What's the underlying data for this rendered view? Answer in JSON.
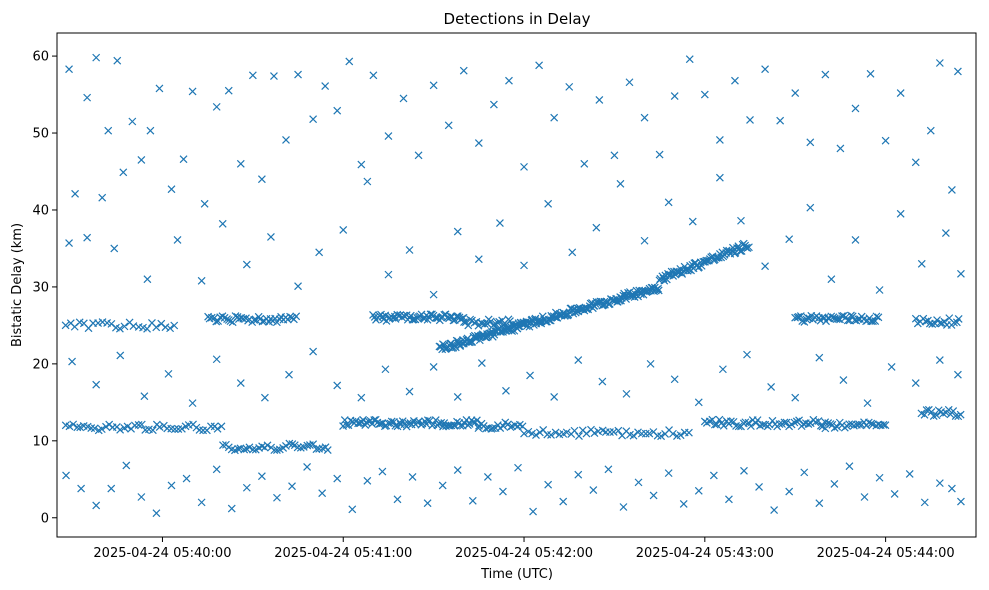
{
  "chart_data": {
    "type": "scatter",
    "title": "Detections in Delay",
    "xlabel": "Time (UTC)",
    "ylabel": "Bistatic Delay (km)",
    "marker": "x",
    "color": "#1f77b4",
    "xlim": [
      "2025-04-24T05:39:25",
      "2025-04-24T05:44:30"
    ],
    "ylim": [
      -2.5,
      63
    ],
    "x_ticks": [
      "2025-04-24 05:40:00",
      "2025-04-24 05:41:00",
      "2025-04-24 05:42:00",
      "2025-04-24 05:43:00",
      "2025-04-24 05:44:00"
    ],
    "y_ticks": [
      0,
      10,
      20,
      30,
      40,
      50,
      60
    ],
    "grid": false,
    "tracks": [
      {
        "x_start": "2025-04-24T05:39:28",
        "x_end": "2025-04-24T05:40:20",
        "y": 11.8,
        "step_s": 1.2
      },
      {
        "x_start": "2025-04-24T05:40:20",
        "x_end": "2025-04-24T05:40:55",
        "y": 9.2,
        "step_s": 1.0
      },
      {
        "x_start": "2025-04-24T05:41:00",
        "x_end": "2025-04-24T05:41:45",
        "y": 12.3,
        "step_s": 0.6
      },
      {
        "x_start": "2025-04-24T05:41:45",
        "x_end": "2025-04-24T05:42:00",
        "y": 12.0,
        "step_s": 0.8
      },
      {
        "x_start": "2025-04-24T05:42:00",
        "x_end": "2025-04-24T05:42:55",
        "y": 11.0,
        "step_s": 1.3
      },
      {
        "x_start": "2025-04-24T05:43:00",
        "x_end": "2025-04-24T05:43:40",
        "y": 12.3,
        "step_s": 0.8
      },
      {
        "x_start": "2025-04-24T05:43:40",
        "x_end": "2025-04-24T05:44:00",
        "y": 12.0,
        "step_s": 0.8
      },
      {
        "x_start": "2025-04-24T05:44:12",
        "x_end": "2025-04-24T05:44:25",
        "y": 13.6,
        "step_s": 0.8
      },
      {
        "x_start": "2025-04-24T05:39:28",
        "x_end": "2025-04-24T05:40:05",
        "y": 25.0,
        "step_s": 1.5
      },
      {
        "x_start": "2025-04-24T05:40:15",
        "x_end": "2025-04-24T05:40:45",
        "y": 25.8,
        "step_s": 0.7
      },
      {
        "x_start": "2025-04-24T05:41:10",
        "x_end": "2025-04-24T05:41:40",
        "y": 26.0,
        "step_s": 0.5
      },
      {
        "x_start": "2025-04-24T05:41:40",
        "x_end": "2025-04-24T05:42:00",
        "y": 25.4,
        "step_s": 0.7
      },
      {
        "x_start": "2025-04-24T05:43:30",
        "x_end": "2025-04-24T05:43:58",
        "y": 25.9,
        "step_s": 0.6
      },
      {
        "x_start": "2025-04-24T05:44:10",
        "x_end": "2025-04-24T05:44:25",
        "y": 25.5,
        "step_s": 0.8
      },
      {
        "x_start": "2025-04-24T05:41:32",
        "x_end": "2025-04-24T05:42:45",
        "y_start": 22.0,
        "y_end": 30.0,
        "step_s": 0.35
      },
      {
        "x_start": "2025-04-24T05:42:45",
        "x_end": "2025-04-24T05:43:15",
        "y_start": 31.0,
        "y_end": 35.5,
        "step_s": 0.4
      }
    ],
    "scatter_points": [
      [
        "2025-04-24T05:39:29",
        58.3
      ],
      [
        "2025-04-24T05:39:31",
        42.1
      ],
      [
        "2025-04-24T05:39:35",
        54.6
      ],
      [
        "2025-04-24T05:39:38",
        59.8
      ],
      [
        "2025-04-24T05:39:40",
        41.6
      ],
      [
        "2025-04-24T05:39:42",
        50.3
      ],
      [
        "2025-04-24T05:39:45",
        59.4
      ],
      [
        "2025-04-24T05:39:47",
        44.9
      ],
      [
        "2025-04-24T05:39:50",
        51.5
      ],
      [
        "2025-04-24T05:39:53",
        46.5
      ],
      [
        "2025-04-24T05:39:56",
        50.3
      ],
      [
        "2025-04-24T05:39:59",
        55.8
      ],
      [
        "2025-04-24T05:40:03",
        42.7
      ],
      [
        "2025-04-24T05:40:07",
        46.6
      ],
      [
        "2025-04-24T05:40:10",
        55.4
      ],
      [
        "2025-04-24T05:40:14",
        40.8
      ],
      [
        "2025-04-24T05:40:18",
        53.4
      ],
      [
        "2025-04-24T05:40:22",
        55.5
      ],
      [
        "2025-04-24T05:40:26",
        46.0
      ],
      [
        "2025-04-24T05:40:30",
        57.5
      ],
      [
        "2025-04-24T05:40:33",
        44.0
      ],
      [
        "2025-04-24T05:40:37",
        57.4
      ],
      [
        "2025-04-24T05:40:41",
        49.1
      ],
      [
        "2025-04-24T05:40:45",
        57.6
      ],
      [
        "2025-04-24T05:40:50",
        51.8
      ],
      [
        "2025-04-24T05:40:54",
        56.1
      ],
      [
        "2025-04-24T05:40:58",
        52.9
      ],
      [
        "2025-04-24T05:41:02",
        59.3
      ],
      [
        "2025-04-24T05:41:06",
        45.9
      ],
      [
        "2025-04-24T05:41:10",
        57.5
      ],
      [
        "2025-04-24T05:41:15",
        49.6
      ],
      [
        "2025-04-24T05:41:20",
        54.5
      ],
      [
        "2025-04-24T05:41:25",
        47.1
      ],
      [
        "2025-04-24T05:41:30",
        56.2
      ],
      [
        "2025-04-24T05:41:35",
        51.0
      ],
      [
        "2025-04-24T05:41:40",
        58.1
      ],
      [
        "2025-04-24T05:41:45",
        48.7
      ],
      [
        "2025-04-24T05:41:50",
        53.7
      ],
      [
        "2025-04-24T05:41:55",
        56.8
      ],
      [
        "2025-04-24T05:42:00",
        45.6
      ],
      [
        "2025-04-24T05:42:05",
        58.8
      ],
      [
        "2025-04-24T05:42:10",
        52.0
      ],
      [
        "2025-04-24T05:42:15",
        56.0
      ],
      [
        "2025-04-24T05:42:20",
        46.0
      ],
      [
        "2025-04-24T05:42:25",
        54.3
      ],
      [
        "2025-04-24T05:42:30",
        47.1
      ],
      [
        "2025-04-24T05:42:35",
        56.6
      ],
      [
        "2025-04-24T05:42:40",
        52.0
      ],
      [
        "2025-04-24T05:42:45",
        47.2
      ],
      [
        "2025-04-24T05:42:50",
        54.8
      ],
      [
        "2025-04-24T05:42:55",
        59.6
      ],
      [
        "2025-04-24T05:43:00",
        55.0
      ],
      [
        "2025-04-24T05:43:05",
        49.1
      ],
      [
        "2025-04-24T05:43:10",
        56.8
      ],
      [
        "2025-04-24T05:43:15",
        51.7
      ],
      [
        "2025-04-24T05:43:20",
        58.3
      ],
      [
        "2025-04-24T05:43:25",
        51.6
      ],
      [
        "2025-04-24T05:43:30",
        55.2
      ],
      [
        "2025-04-24T05:43:35",
        48.8
      ],
      [
        "2025-04-24T05:43:40",
        57.6
      ],
      [
        "2025-04-24T05:43:45",
        48.0
      ],
      [
        "2025-04-24T05:43:50",
        53.2
      ],
      [
        "2025-04-24T05:43:55",
        57.7
      ],
      [
        "2025-04-24T05:44:00",
        49.0
      ],
      [
        "2025-04-24T05:44:05",
        55.2
      ],
      [
        "2025-04-24T05:44:10",
        46.2
      ],
      [
        "2025-04-24T05:44:15",
        50.3
      ],
      [
        "2025-04-24T05:44:18",
        59.1
      ],
      [
        "2025-04-24T05:44:22",
        42.6
      ],
      [
        "2025-04-24T05:44:24",
        58.0
      ],
      [
        "2025-04-24T05:39:29",
        35.7
      ],
      [
        "2025-04-24T05:39:35",
        36.4
      ],
      [
        "2025-04-24T05:39:44",
        35.0
      ],
      [
        "2025-04-24T05:39:55",
        31.0
      ],
      [
        "2025-04-24T05:40:05",
        36.1
      ],
      [
        "2025-04-24T05:40:13",
        30.8
      ],
      [
        "2025-04-24T05:40:20",
        38.2
      ],
      [
        "2025-04-24T05:40:28",
        32.9
      ],
      [
        "2025-04-24T05:40:36",
        36.5
      ],
      [
        "2025-04-24T05:40:45",
        30.1
      ],
      [
        "2025-04-24T05:40:52",
        34.5
      ],
      [
        "2025-04-24T05:41:00",
        37.4
      ],
      [
        "2025-04-24T05:41:08",
        43.7
      ],
      [
        "2025-04-24T05:41:15",
        31.6
      ],
      [
        "2025-04-24T05:41:22",
        34.8
      ],
      [
        "2025-04-24T05:41:30",
        29.0
      ],
      [
        "2025-04-24T05:41:38",
        37.2
      ],
      [
        "2025-04-24T05:41:45",
        33.6
      ],
      [
        "2025-04-24T05:41:52",
        38.3
      ],
      [
        "2025-04-24T05:42:00",
        32.8
      ],
      [
        "2025-04-24T05:42:08",
        40.8
      ],
      [
        "2025-04-24T05:42:16",
        34.5
      ],
      [
        "2025-04-24T05:42:24",
        37.7
      ],
      [
        "2025-04-24T05:42:32",
        43.4
      ],
      [
        "2025-04-24T05:42:40",
        36.0
      ],
      [
        "2025-04-24T05:42:48",
        41.0
      ],
      [
        "2025-04-24T05:42:56",
        38.5
      ],
      [
        "2025-04-24T05:43:05",
        44.2
      ],
      [
        "2025-04-24T05:43:12",
        38.6
      ],
      [
        "2025-04-24T05:43:20",
        32.7
      ],
      [
        "2025-04-24T05:43:28",
        36.2
      ],
      [
        "2025-04-24T05:43:35",
        40.3
      ],
      [
        "2025-04-24T05:43:42",
        31.0
      ],
      [
        "2025-04-24T05:43:50",
        36.1
      ],
      [
        "2025-04-24T05:43:58",
        29.6
      ],
      [
        "2025-04-24T05:44:05",
        39.5
      ],
      [
        "2025-04-24T05:44:12",
        33.0
      ],
      [
        "2025-04-24T05:44:20",
        37.0
      ],
      [
        "2025-04-24T05:44:25",
        31.7
      ],
      [
        "2025-04-24T05:39:30",
        20.3
      ],
      [
        "2025-04-24T05:39:38",
        17.3
      ],
      [
        "2025-04-24T05:39:46",
        21.1
      ],
      [
        "2025-04-24T05:39:54",
        15.8
      ],
      [
        "2025-04-24T05:40:02",
        18.7
      ],
      [
        "2025-04-24T05:40:10",
        14.9
      ],
      [
        "2025-04-24T05:40:18",
        20.6
      ],
      [
        "2025-04-24T05:40:26",
        17.5
      ],
      [
        "2025-04-24T05:40:34",
        15.6
      ],
      [
        "2025-04-24T05:40:42",
        18.6
      ],
      [
        "2025-04-24T05:40:50",
        21.6
      ],
      [
        "2025-04-24T05:40:58",
        17.2
      ],
      [
        "2025-04-24T05:41:06",
        15.6
      ],
      [
        "2025-04-24T05:41:14",
        19.3
      ],
      [
        "2025-04-24T05:41:22",
        16.4
      ],
      [
        "2025-04-24T05:41:30",
        19.6
      ],
      [
        "2025-04-24T05:41:38",
        15.7
      ],
      [
        "2025-04-24T05:41:46",
        20.1
      ],
      [
        "2025-04-24T05:41:54",
        16.5
      ],
      [
        "2025-04-24T05:42:02",
        18.5
      ],
      [
        "2025-04-24T05:42:10",
        15.7
      ],
      [
        "2025-04-24T05:42:18",
        20.5
      ],
      [
        "2025-04-24T05:42:26",
        17.7
      ],
      [
        "2025-04-24T05:42:34",
        16.1
      ],
      [
        "2025-04-24T05:42:42",
        20.0
      ],
      [
        "2025-04-24T05:42:50",
        18.0
      ],
      [
        "2025-04-24T05:42:58",
        15.0
      ],
      [
        "2025-04-24T05:43:06",
        19.3
      ],
      [
        "2025-04-24T05:43:14",
        21.2
      ],
      [
        "2025-04-24T05:43:22",
        17.0
      ],
      [
        "2025-04-24T05:43:30",
        15.6
      ],
      [
        "2025-04-24T05:43:38",
        20.8
      ],
      [
        "2025-04-24T05:43:46",
        17.9
      ],
      [
        "2025-04-24T05:43:54",
        14.9
      ],
      [
        "2025-04-24T05:44:02",
        19.6
      ],
      [
        "2025-04-24T05:44:10",
        17.5
      ],
      [
        "2025-04-24T05:44:18",
        20.5
      ],
      [
        "2025-04-24T05:44:24",
        18.6
      ],
      [
        "2025-04-24T05:39:28",
        5.5
      ],
      [
        "2025-04-24T05:39:33",
        3.8
      ],
      [
        "2025-04-24T05:39:38",
        1.6
      ],
      [
        "2025-04-24T05:39:43",
        3.8
      ],
      [
        "2025-04-24T05:39:48",
        6.8
      ],
      [
        "2025-04-24T05:39:53",
        2.7
      ],
      [
        "2025-04-24T05:39:58",
        0.6
      ],
      [
        "2025-04-24T05:40:03",
        4.2
      ],
      [
        "2025-04-24T05:40:08",
        5.1
      ],
      [
        "2025-04-24T05:40:13",
        2.0
      ],
      [
        "2025-04-24T05:40:18",
        6.3
      ],
      [
        "2025-04-24T05:40:23",
        1.2
      ],
      [
        "2025-04-24T05:40:28",
        3.9
      ],
      [
        "2025-04-24T05:40:33",
        5.4
      ],
      [
        "2025-04-24T05:40:38",
        2.6
      ],
      [
        "2025-04-24T05:40:43",
        4.1
      ],
      [
        "2025-04-24T05:40:48",
        6.6
      ],
      [
        "2025-04-24T05:40:53",
        3.2
      ],
      [
        "2025-04-24T05:40:58",
        5.1
      ],
      [
        "2025-04-24T05:41:03",
        1.1
      ],
      [
        "2025-04-24T05:41:08",
        4.8
      ],
      [
        "2025-04-24T05:41:13",
        6.0
      ],
      [
        "2025-04-24T05:41:18",
        2.4
      ],
      [
        "2025-04-24T05:41:23",
        5.3
      ],
      [
        "2025-04-24T05:41:28",
        1.9
      ],
      [
        "2025-04-24T05:41:33",
        4.2
      ],
      [
        "2025-04-24T05:41:38",
        6.2
      ],
      [
        "2025-04-24T05:41:43",
        2.2
      ],
      [
        "2025-04-24T05:41:48",
        5.3
      ],
      [
        "2025-04-24T05:41:53",
        3.4
      ],
      [
        "2025-04-24T05:41:58",
        6.5
      ],
      [
        "2025-04-24T05:42:03",
        0.8
      ],
      [
        "2025-04-24T05:42:08",
        4.3
      ],
      [
        "2025-04-24T05:42:13",
        2.1
      ],
      [
        "2025-04-24T05:42:18",
        5.6
      ],
      [
        "2025-04-24T05:42:23",
        3.6
      ],
      [
        "2025-04-24T05:42:28",
        6.3
      ],
      [
        "2025-04-24T05:42:33",
        1.4
      ],
      [
        "2025-04-24T05:42:38",
        4.6
      ],
      [
        "2025-04-24T05:42:43",
        2.9
      ],
      [
        "2025-04-24T05:42:48",
        5.8
      ],
      [
        "2025-04-24T05:42:53",
        1.8
      ],
      [
        "2025-04-24T05:42:58",
        3.5
      ],
      [
        "2025-04-24T05:43:03",
        5.5
      ],
      [
        "2025-04-24T05:43:08",
        2.4
      ],
      [
        "2025-04-24T05:43:13",
        6.1
      ],
      [
        "2025-04-24T05:43:18",
        4.0
      ],
      [
        "2025-04-24T05:43:23",
        1.0
      ],
      [
        "2025-04-24T05:43:28",
        3.4
      ],
      [
        "2025-04-24T05:43:33",
        5.9
      ],
      [
        "2025-04-24T05:43:38",
        1.9
      ],
      [
        "2025-04-24T05:43:43",
        4.4
      ],
      [
        "2025-04-24T05:43:48",
        6.7
      ],
      [
        "2025-04-24T05:43:53",
        2.7
      ],
      [
        "2025-04-24T05:43:58",
        5.2
      ],
      [
        "2025-04-24T05:44:03",
        3.1
      ],
      [
        "2025-04-24T05:44:08",
        5.7
      ],
      [
        "2025-04-24T05:44:13",
        2.0
      ],
      [
        "2025-04-24T05:44:18",
        4.5
      ],
      [
        "2025-04-24T05:44:22",
        3.8
      ],
      [
        "2025-04-24T05:44:25",
        2.1
      ]
    ]
  }
}
